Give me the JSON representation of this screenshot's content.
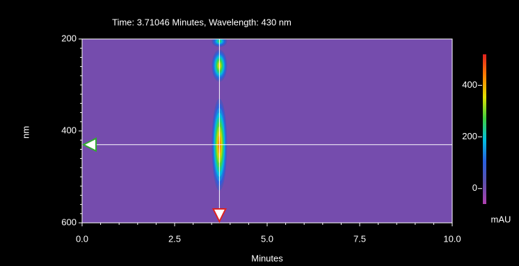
{
  "chart_data": {
    "type": "heatmap",
    "title": "Time: 3.71046 Minutes, Wavelength: 430 nm",
    "x_label": "Minutes",
    "y_label": "nm",
    "xlim": [
      0,
      10
    ],
    "xticks": [
      {
        "value": 0,
        "label": "0.0"
      },
      {
        "value": 2.5,
        "label": "2.5"
      },
      {
        "value": 5,
        "label": "5.0"
      },
      {
        "value": 7.5,
        "label": "7.5"
      },
      {
        "value": 10,
        "label": "10.0"
      }
    ],
    "ylim": [
      200,
      600
    ],
    "y_inverted": true,
    "yticks": [
      200,
      400,
      600
    ],
    "peaks": [
      {
        "time": 3.71,
        "wavelength": 205,
        "value": 300,
        "height_nm": 25
      },
      {
        "time": 3.71,
        "wavelength": 258,
        "value": 420,
        "height_nm": 70
      },
      {
        "time": 3.71,
        "wavelength": 430,
        "value": 510,
        "height_nm": 200
      }
    ],
    "cursor": {
      "time": 3.71046,
      "wavelength": 430
    },
    "colorbar": {
      "label": "mAU",
      "lim": [
        -60,
        520
      ],
      "ticks": [
        0,
        200,
        400
      ],
      "colormap": [
        "#b040b0",
        "#5e50ac",
        "#2860e0",
        "#00c0e0",
        "#40d040",
        "#e0e000",
        "#ff8000",
        "#e02020"
      ]
    }
  }
}
